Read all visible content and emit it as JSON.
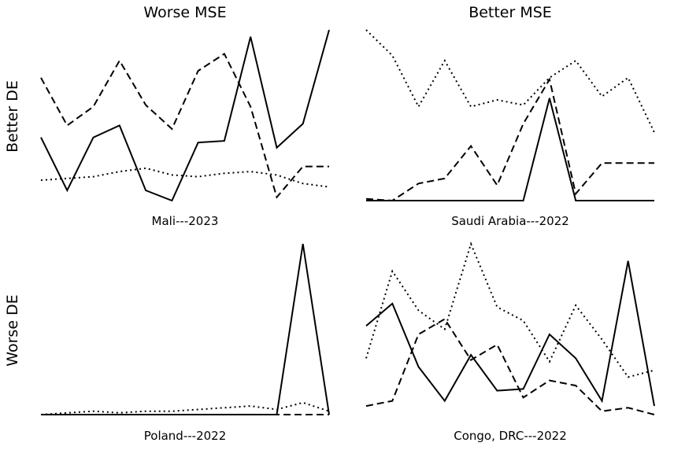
{
  "col_titles": [
    "Worse MSE",
    "Better MSE"
  ],
  "row_titles": [
    "Better DE",
    "Worse DE"
  ],
  "chart_data": [
    {
      "type": "line",
      "title": "Mali---2023",
      "x": [
        0,
        1,
        2,
        3,
        4,
        5,
        6,
        7,
        8,
        9,
        10,
        11
      ],
      "ylim": [
        0,
        1
      ],
      "series": [
        {
          "style": "solid",
          "values": [
            0.37,
            0.06,
            0.37,
            0.44,
            0.06,
            0.0,
            0.34,
            0.35,
            0.96,
            0.31,
            0.45,
            1.0
          ]
        },
        {
          "style": "dashed",
          "values": [
            0.72,
            0.44,
            0.55,
            0.82,
            0.56,
            0.42,
            0.76,
            0.86,
            0.55,
            0.02,
            0.2,
            0.2
          ]
        },
        {
          "style": "dotted",
          "values": [
            0.12,
            0.13,
            0.14,
            0.17,
            0.19,
            0.15,
            0.14,
            0.16,
            0.17,
            0.15,
            0.1,
            0.08
          ]
        }
      ]
    },
    {
      "type": "line",
      "title": "Saudi Arabia---2022",
      "x": [
        0,
        1,
        2,
        3,
        4,
        5,
        6,
        7,
        8,
        9,
        10,
        11
      ],
      "ylim": [
        0,
        1
      ],
      "series": [
        {
          "style": "solid",
          "values": [
            0.0,
            0.0,
            0.0,
            0.0,
            0.0,
            0.0,
            0.0,
            0.6,
            0.0,
            0.0,
            0.0,
            0.0
          ]
        },
        {
          "style": "dashed",
          "values": [
            0.01,
            0.0,
            0.1,
            0.13,
            0.32,
            0.09,
            0.45,
            0.71,
            0.04,
            0.22,
            0.22,
            0.22
          ]
        },
        {
          "style": "dotted",
          "values": [
            1.0,
            0.85,
            0.55,
            0.82,
            0.55,
            0.59,
            0.56,
            0.72,
            0.82,
            0.61,
            0.72,
            0.4
          ]
        }
      ]
    },
    {
      "type": "line",
      "title": "Poland---2022",
      "x": [
        0,
        1,
        2,
        3,
        4,
        5,
        6,
        7,
        8,
        9,
        10,
        11
      ],
      "ylim": [
        0,
        1
      ],
      "series": [
        {
          "style": "solid",
          "values": [
            0.0,
            0.0,
            0.0,
            0.0,
            0.0,
            0.0,
            0.0,
            0.0,
            0.0,
            0.0,
            1.0,
            0.0
          ]
        },
        {
          "style": "dashed",
          "values": [
            0.0,
            0.0,
            0.0,
            0.0,
            0.0,
            0.0,
            0.0,
            0.0,
            0.0,
            0.0,
            0.0,
            0.0
          ]
        },
        {
          "style": "dotted",
          "values": [
            0.0,
            0.01,
            0.02,
            0.01,
            0.02,
            0.02,
            0.03,
            0.04,
            0.05,
            0.03,
            0.07,
            0.02
          ]
        }
      ]
    },
    {
      "type": "line",
      "title": "Congo, DRC---2022",
      "x": [
        0,
        1,
        2,
        3,
        4,
        5,
        6,
        7,
        8,
        9,
        10,
        11
      ],
      "ylim": [
        0,
        1
      ],
      "series": [
        {
          "style": "solid",
          "values": [
            0.52,
            0.65,
            0.28,
            0.08,
            0.35,
            0.14,
            0.15,
            0.47,
            0.33,
            0.08,
            0.9,
            0.05
          ]
        },
        {
          "style": "dashed",
          "values": [
            0.05,
            0.08,
            0.47,
            0.56,
            0.32,
            0.41,
            0.1,
            0.2,
            0.17,
            0.02,
            0.04,
            0.0
          ]
        },
        {
          "style": "dotted",
          "values": [
            0.33,
            0.84,
            0.61,
            0.5,
            1.0,
            0.63,
            0.55,
            0.31,
            0.64,
            0.44,
            0.22,
            0.26
          ]
        }
      ]
    }
  ]
}
